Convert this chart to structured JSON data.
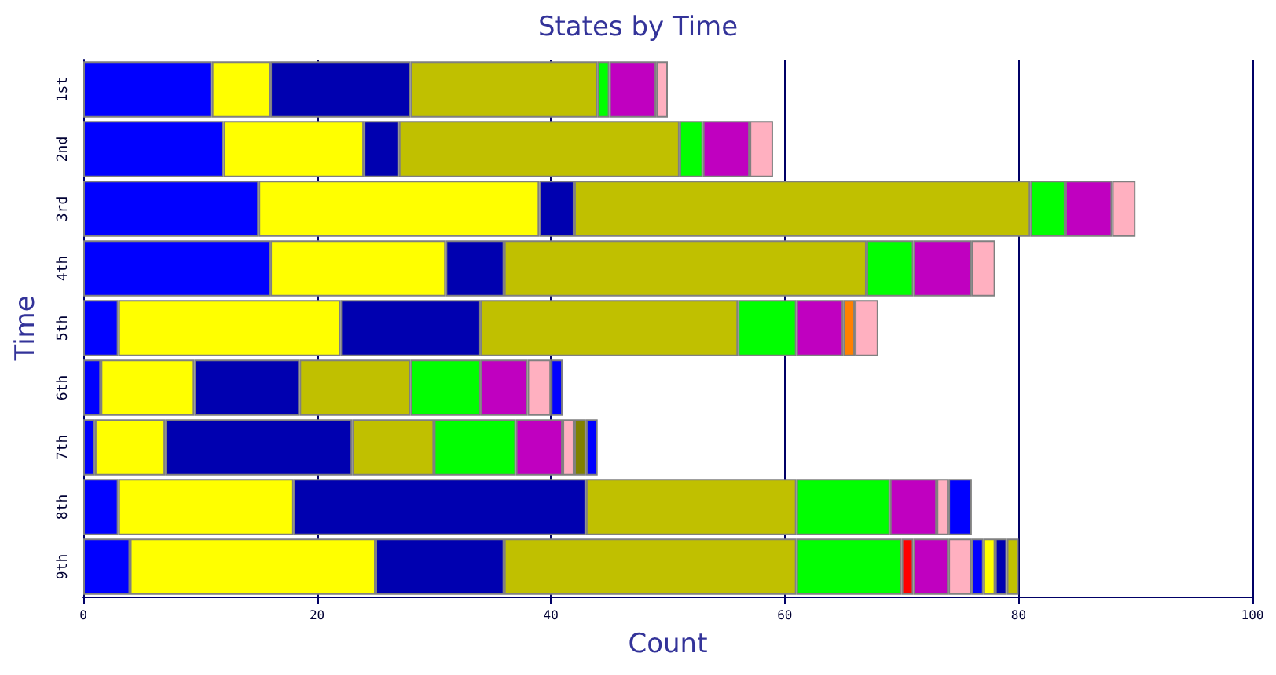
{
  "chart_data": {
    "type": "bar",
    "orientation": "horizontal",
    "stacked": true,
    "title": "States by Time",
    "xlabel": "Count",
    "ylabel": "Time",
    "categories": [
      "1st",
      "2nd",
      "3rd",
      "4th",
      "5th",
      "6th",
      "7th",
      "8th",
      "9th"
    ],
    "series": [
      {
        "color": "#0000ff",
        "values": [
          11,
          12,
          15,
          16,
          3,
          1.5,
          1,
          3,
          4
        ]
      },
      {
        "color": "#ffff00",
        "values": [
          5,
          12,
          24,
          15,
          19,
          8,
          6,
          15,
          21
        ]
      },
      {
        "color": "#0000b0",
        "values": [
          12,
          3,
          3,
          5,
          12,
          9,
          16,
          25,
          11
        ]
      },
      {
        "color": "#c0c000",
        "values": [
          16,
          24,
          39,
          31,
          22,
          9.5,
          7,
          18,
          25
        ]
      },
      {
        "color": "#00ff00",
        "values": [
          1,
          2,
          3,
          4,
          5,
          6,
          7,
          8,
          9
        ]
      },
      {
        "color": "#ff0000",
        "values": [
          null,
          null,
          null,
          null,
          null,
          null,
          null,
          null,
          1
        ]
      },
      {
        "color": "#c000c0",
        "values": [
          4,
          4,
          4,
          5,
          4,
          4,
          4,
          4,
          3
        ]
      },
      {
        "color": "#ff8000",
        "values": [
          null,
          null,
          null,
          null,
          1,
          null,
          null,
          null,
          null
        ]
      },
      {
        "color": "#ffb0c0",
        "values": [
          1,
          2,
          2,
          2,
          2,
          2,
          1,
          1,
          2
        ]
      },
      {
        "color": "#808000",
        "values": [
          null,
          null,
          null,
          null,
          null,
          null,
          1,
          null,
          null
        ]
      },
      {
        "color": "#0000ff",
        "values": [
          null,
          null,
          null,
          null,
          null,
          1,
          1,
          2,
          1
        ]
      },
      {
        "color": "#ffff00",
        "values": [
          null,
          null,
          null,
          null,
          null,
          null,
          null,
          null,
          1
        ]
      },
      {
        "color": "#0000b0",
        "values": [
          null,
          null,
          null,
          null,
          null,
          null,
          null,
          null,
          1
        ]
      },
      {
        "color": "#c0c000",
        "values": [
          null,
          null,
          null,
          null,
          null,
          null,
          null,
          null,
          1
        ]
      }
    ],
    "xlim": [
      0,
      100
    ],
    "xticks": [
      0,
      20,
      40,
      60,
      80,
      100
    ],
    "grid": "x"
  }
}
